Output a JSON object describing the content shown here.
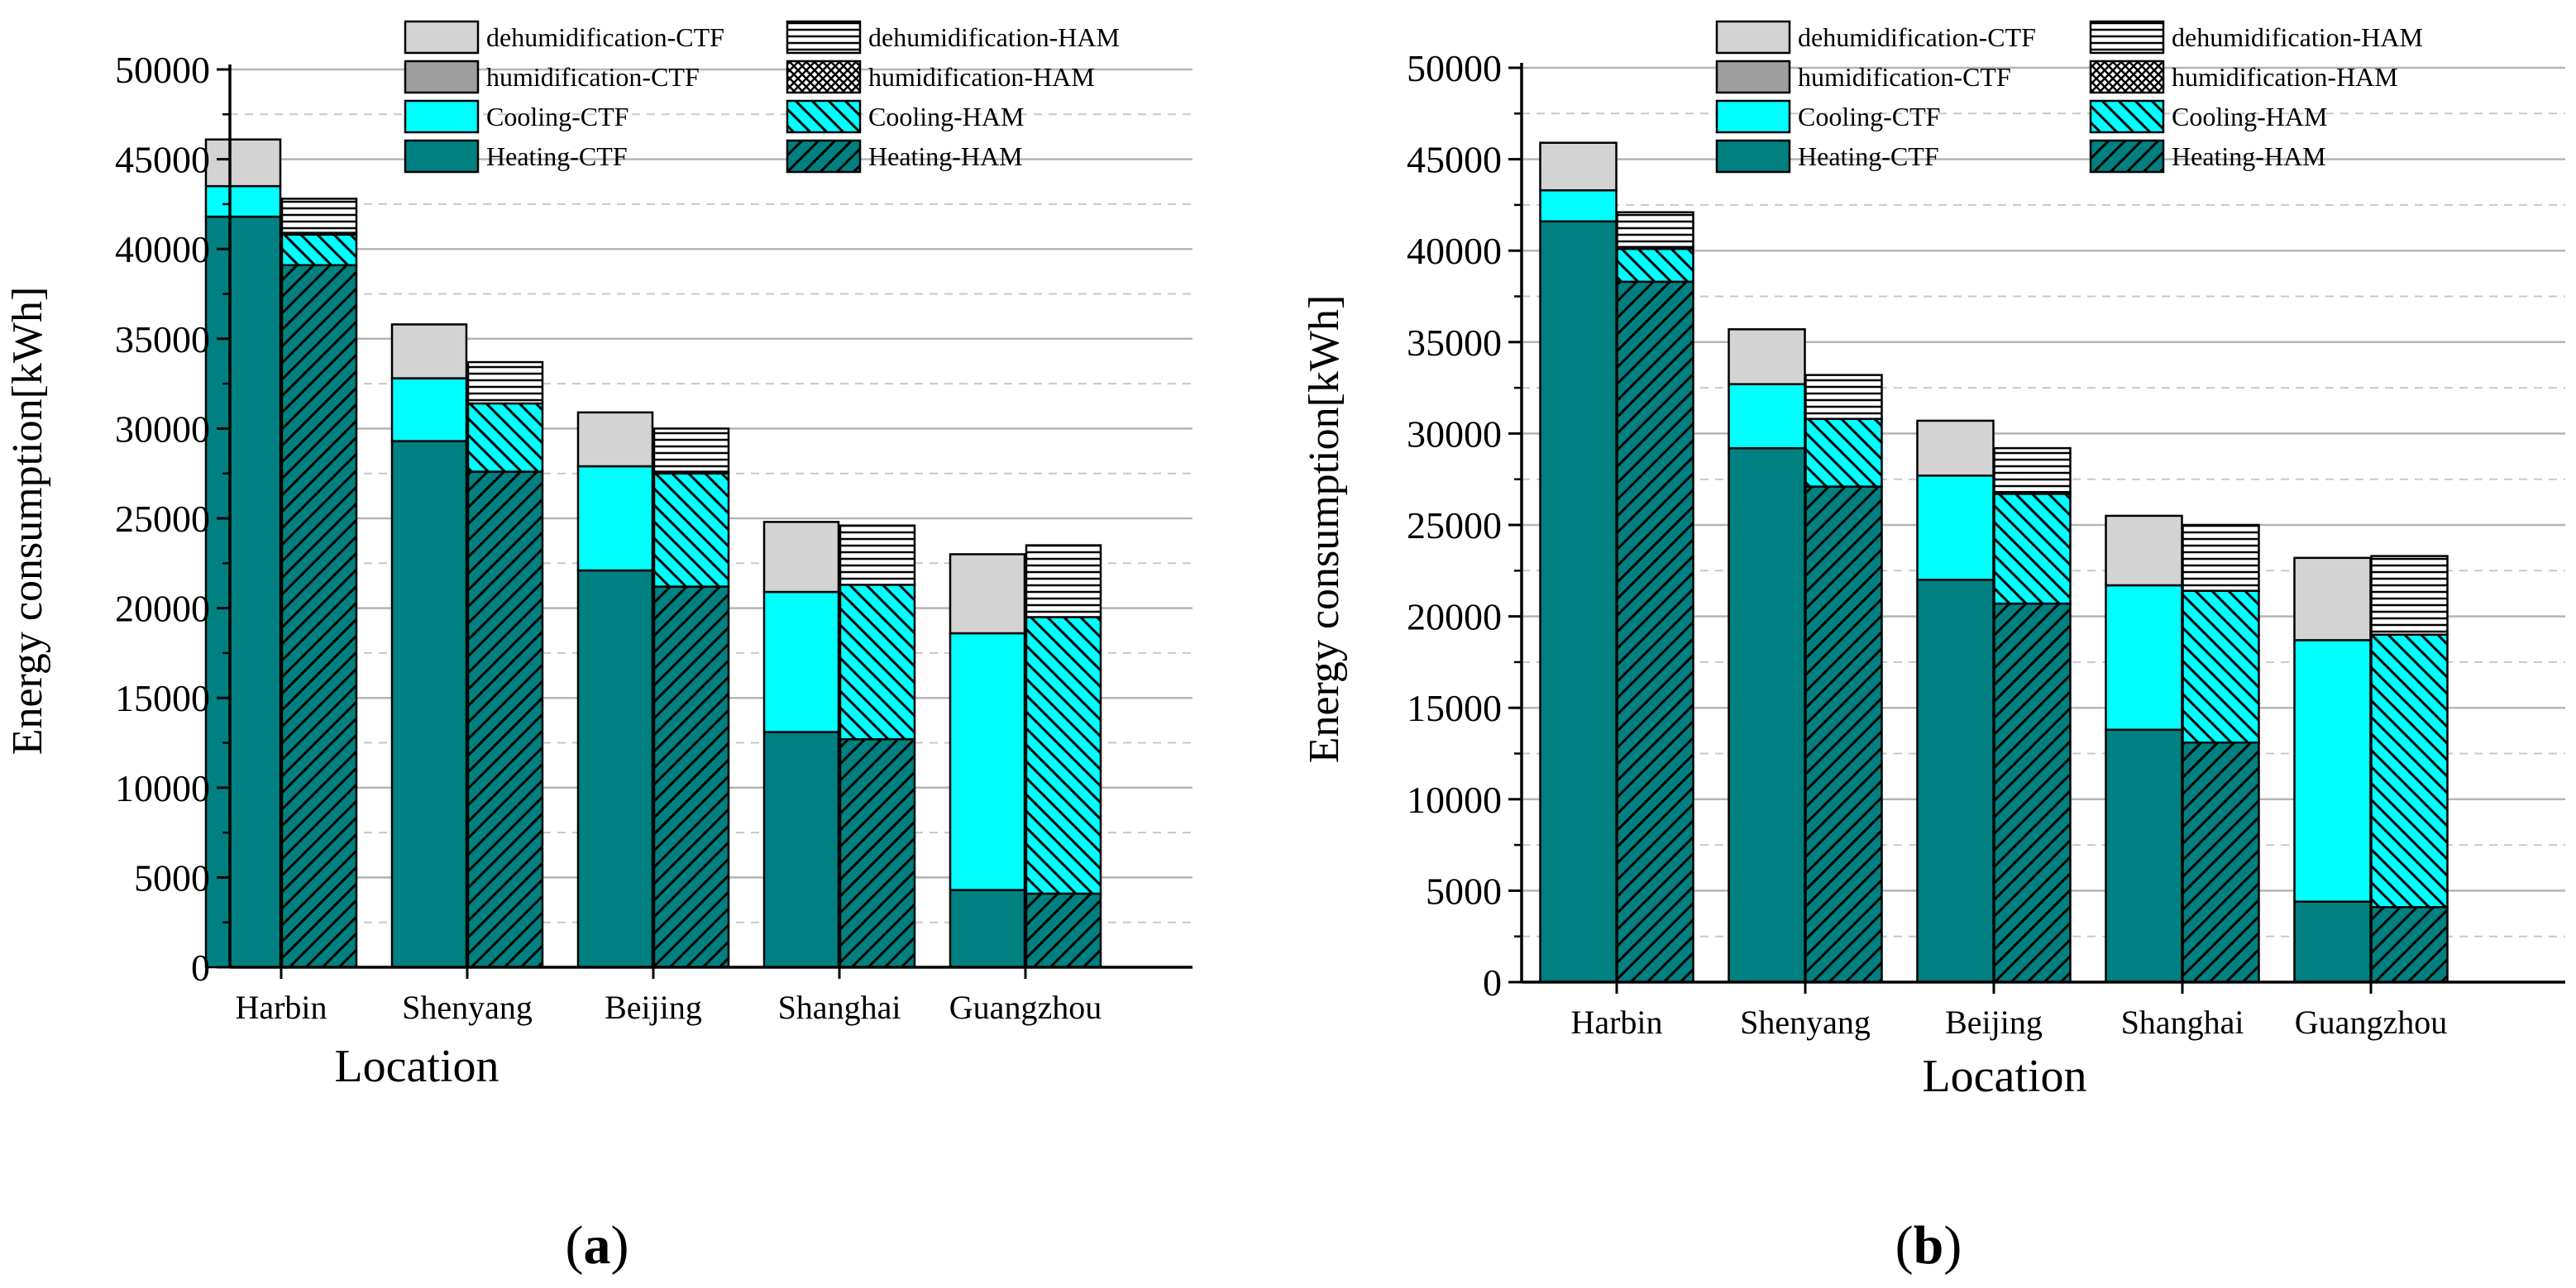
{
  "colors": {
    "heating": "#008080",
    "cooling": "#00ffff",
    "humidification": "#9e9e9e",
    "dehumidification": "#d3d3d3",
    "grid": "#b5b5b5",
    "minor_grid": "#c8c8c8"
  },
  "legend": {
    "ctf": [
      "dehumidification-CTF",
      "humidification-CTF",
      "Cooling-CTF",
      "Heating-CTF"
    ],
    "ham": [
      "dehumidification-HAM",
      "humidification-HAM",
      "Cooling-HAM",
      "Heating-HAM"
    ]
  },
  "panels": [
    {
      "label_open": "(",
      "label_letter": "a",
      "label_close": ")"
    },
    {
      "label_open": "(",
      "label_letter": "b",
      "label_close": ")"
    }
  ],
  "chart_data": [
    {
      "type": "bar",
      "stacked": true,
      "title": "",
      "xlabel": "Location",
      "ylabel": "Energy consumption[kWh]",
      "ylim": [
        0,
        50000
      ],
      "yticks": [
        0,
        5000,
        10000,
        15000,
        20000,
        25000,
        30000,
        35000,
        40000,
        45000,
        50000
      ],
      "categories": [
        "Harbin",
        "Shenyang",
        "Beijing",
        "Shanghai",
        "Guangzhou"
      ],
      "series": [
        {
          "name": "Heating-CTF",
          "group": "CTF",
          "component": "heating",
          "values": [
            41800,
            29300,
            22100,
            13100,
            4300
          ]
        },
        {
          "name": "Cooling-CTF",
          "group": "CTF",
          "component": "cooling",
          "values": [
            1700,
            3500,
            5800,
            7800,
            14300
          ]
        },
        {
          "name": "humidification-CTF",
          "group": "CTF",
          "component": "humidification",
          "values": [
            0,
            0,
            0,
            0,
            0
          ]
        },
        {
          "name": "dehumidification-CTF",
          "group": "CTF",
          "component": "dehumidification",
          "values": [
            2600,
            3000,
            3000,
            3900,
            4400
          ]
        },
        {
          "name": "Heating-HAM",
          "group": "HAM",
          "component": "heating",
          "values": [
            39100,
            27600,
            21200,
            12700,
            4100
          ]
        },
        {
          "name": "Cooling-HAM",
          "group": "HAM",
          "component": "cooling",
          "values": [
            1700,
            3800,
            6300,
            8600,
            15400
          ]
        },
        {
          "name": "humidification-HAM",
          "group": "HAM",
          "component": "humidification",
          "values": [
            100,
            0,
            100,
            0,
            0
          ]
        },
        {
          "name": "dehumidification-HAM",
          "group": "HAM",
          "component": "dehumidification",
          "values": [
            1900,
            2300,
            2400,
            3300,
            4000
          ]
        }
      ]
    },
    {
      "type": "bar",
      "stacked": true,
      "title": "",
      "xlabel": "Location",
      "ylabel": "Energy consumption[kWh]",
      "ylim": [
        0,
        50000
      ],
      "yticks": [
        0,
        5000,
        10000,
        15000,
        20000,
        25000,
        30000,
        35000,
        40000,
        45000,
        50000
      ],
      "categories": [
        "Harbin",
        "Shenyang",
        "Beijing",
        "Shanghai",
        "Guangzhou"
      ],
      "series": [
        {
          "name": "Heating-CTF",
          "group": "CTF",
          "component": "heating",
          "values": [
            41600,
            29200,
            22000,
            13800,
            4400
          ]
        },
        {
          "name": "Cooling-CTF",
          "group": "CTF",
          "component": "cooling",
          "values": [
            1700,
            3500,
            5700,
            7900,
            14300
          ]
        },
        {
          "name": "humidification-CTF",
          "group": "CTF",
          "component": "humidification",
          "values": [
            0,
            0,
            0,
            0,
            0
          ]
        },
        {
          "name": "dehumidification-CTF",
          "group": "CTF",
          "component": "dehumidification",
          "values": [
            2600,
            3000,
            3000,
            3800,
            4500
          ]
        },
        {
          "name": "Heating-HAM",
          "group": "HAM",
          "component": "heating",
          "values": [
            38300,
            27100,
            20700,
            13100,
            4100
          ]
        },
        {
          "name": "Cooling-HAM",
          "group": "HAM",
          "component": "cooling",
          "values": [
            1800,
            3700,
            6000,
            8300,
            14900
          ]
        },
        {
          "name": "humidification-HAM",
          "group": "HAM",
          "component": "humidification",
          "values": [
            100,
            0,
            100,
            0,
            0
          ]
        },
        {
          "name": "dehumidification-HAM",
          "group": "HAM",
          "component": "dehumidification",
          "values": [
            1900,
            2400,
            2400,
            3600,
            4300
          ]
        }
      ]
    }
  ]
}
